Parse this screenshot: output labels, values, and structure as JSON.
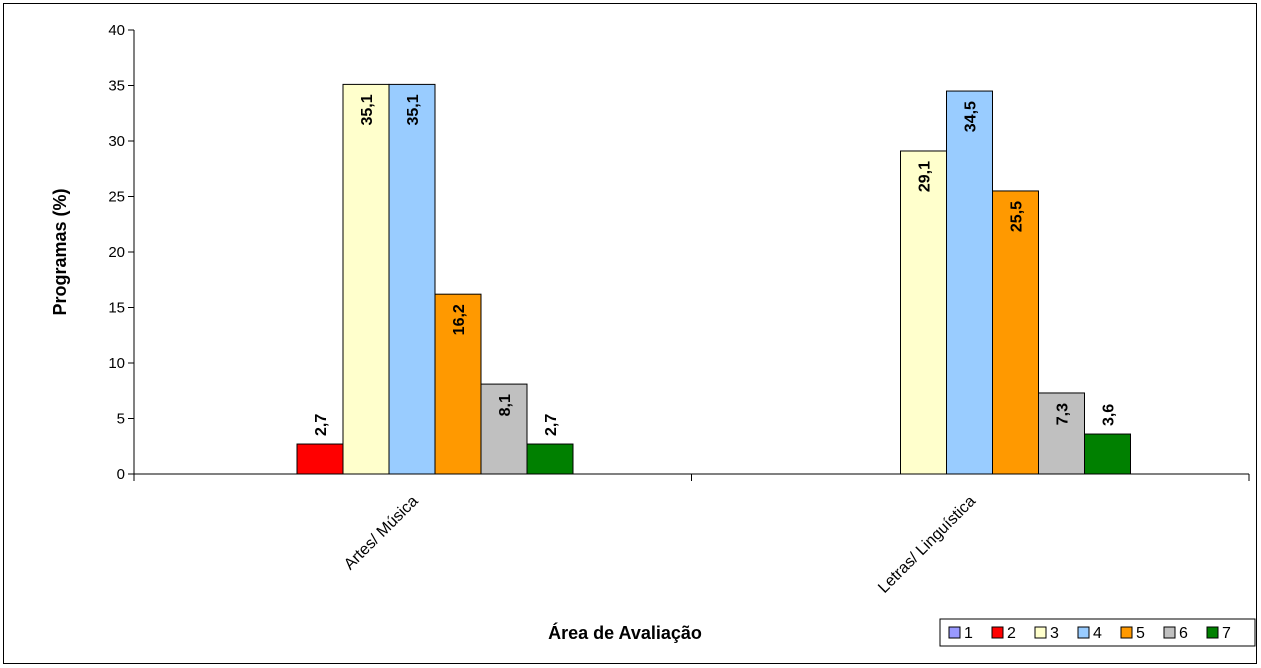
{
  "chart_data": {
    "type": "bar",
    "categories": [
      "Artes/ Música",
      "Letras/ Linguística"
    ],
    "series": [
      {
        "name": "1",
        "values": [
          null,
          null
        ],
        "data_labels": [
          "",
          ""
        ],
        "color": "#9999FF"
      },
      {
        "name": "2",
        "values": [
          2.7,
          null
        ],
        "data_labels": [
          "2,7",
          ""
        ],
        "color": "#FF0000"
      },
      {
        "name": "3",
        "values": [
          35.1,
          29.1
        ],
        "data_labels": [
          "35,1",
          "29,1"
        ],
        "color": "#FFFFCC"
      },
      {
        "name": "4",
        "values": [
          35.1,
          34.5
        ],
        "data_labels": [
          "35,1",
          "34,5"
        ],
        "color": "#99CCFF"
      },
      {
        "name": "5",
        "values": [
          16.2,
          25.5
        ],
        "data_labels": [
          "16,2",
          "25,5"
        ],
        "color": "#FF9900"
      },
      {
        "name": "6",
        "values": [
          8.1,
          7.3
        ],
        "data_labels": [
          "8,1",
          "7,3"
        ],
        "color": "#C0C0C0"
      },
      {
        "name": "7",
        "values": [
          2.7,
          3.6
        ],
        "data_labels": [
          "2,7",
          "3,6"
        ],
        "color": "#008000"
      }
    ],
    "xlabel": "Área de Avaliação",
    "ylabel": "Programas (%)",
    "ylim": [
      0,
      40
    ],
    "yticks": [
      "0",
      "5",
      "10",
      "15",
      "20",
      "25",
      "30",
      "35",
      "40"
    ],
    "grid": false,
    "legend_position": "bottom-right"
  }
}
